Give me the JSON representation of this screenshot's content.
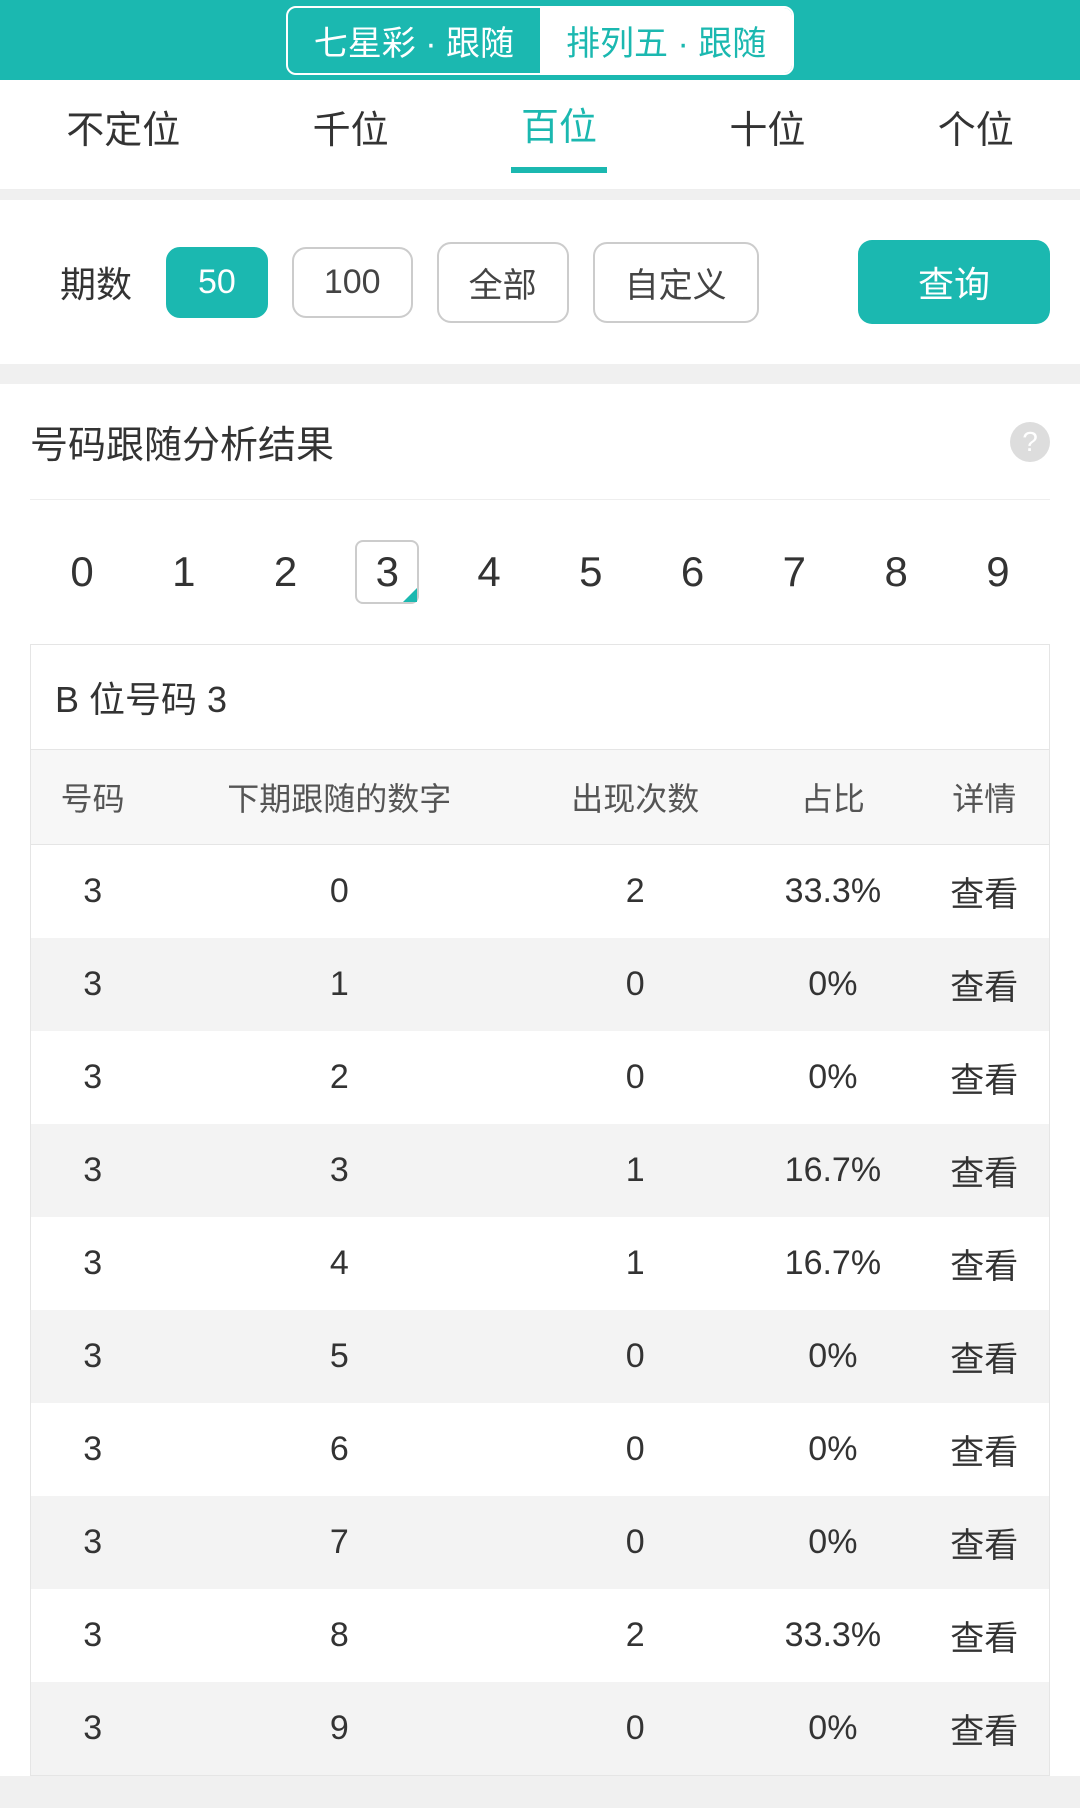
{
  "colors": {
    "accent": "#1bb8b0",
    "bg": "#f0f0f0",
    "border": "#e5e5e5"
  },
  "header": {
    "segments": [
      "七星彩 · 跟随",
      "排列五 · 跟随"
    ],
    "active_index": 1
  },
  "tabs": {
    "items": [
      "不定位",
      "千位",
      "百位",
      "十位",
      "个位"
    ],
    "active_index": 2
  },
  "filter": {
    "label": "期数",
    "options": [
      "50",
      "100",
      "全部",
      "自定义"
    ],
    "active_index": 0,
    "query_label": "查询"
  },
  "result": {
    "title": "号码跟随分析结果",
    "help": "?",
    "digits": [
      "0",
      "1",
      "2",
      "3",
      "4",
      "5",
      "6",
      "7",
      "8",
      "9"
    ],
    "selected_digit_index": 3,
    "table_caption": "B 位号码 3",
    "columns": [
      "号码",
      "下期跟随的数字",
      "出现次数",
      "占比",
      "详情"
    ],
    "view_label": "查看",
    "rows": [
      {
        "num": "3",
        "follow": "0",
        "count": "2",
        "ratio": "33.3%"
      },
      {
        "num": "3",
        "follow": "1",
        "count": "0",
        "ratio": "0%"
      },
      {
        "num": "3",
        "follow": "2",
        "count": "0",
        "ratio": "0%"
      },
      {
        "num": "3",
        "follow": "3",
        "count": "1",
        "ratio": "16.7%"
      },
      {
        "num": "3",
        "follow": "4",
        "count": "1",
        "ratio": "16.7%"
      },
      {
        "num": "3",
        "follow": "5",
        "count": "0",
        "ratio": "0%"
      },
      {
        "num": "3",
        "follow": "6",
        "count": "0",
        "ratio": "0%"
      },
      {
        "num": "3",
        "follow": "7",
        "count": "0",
        "ratio": "0%"
      },
      {
        "num": "3",
        "follow": "8",
        "count": "2",
        "ratio": "33.3%"
      },
      {
        "num": "3",
        "follow": "9",
        "count": "0",
        "ratio": "0%"
      }
    ]
  }
}
